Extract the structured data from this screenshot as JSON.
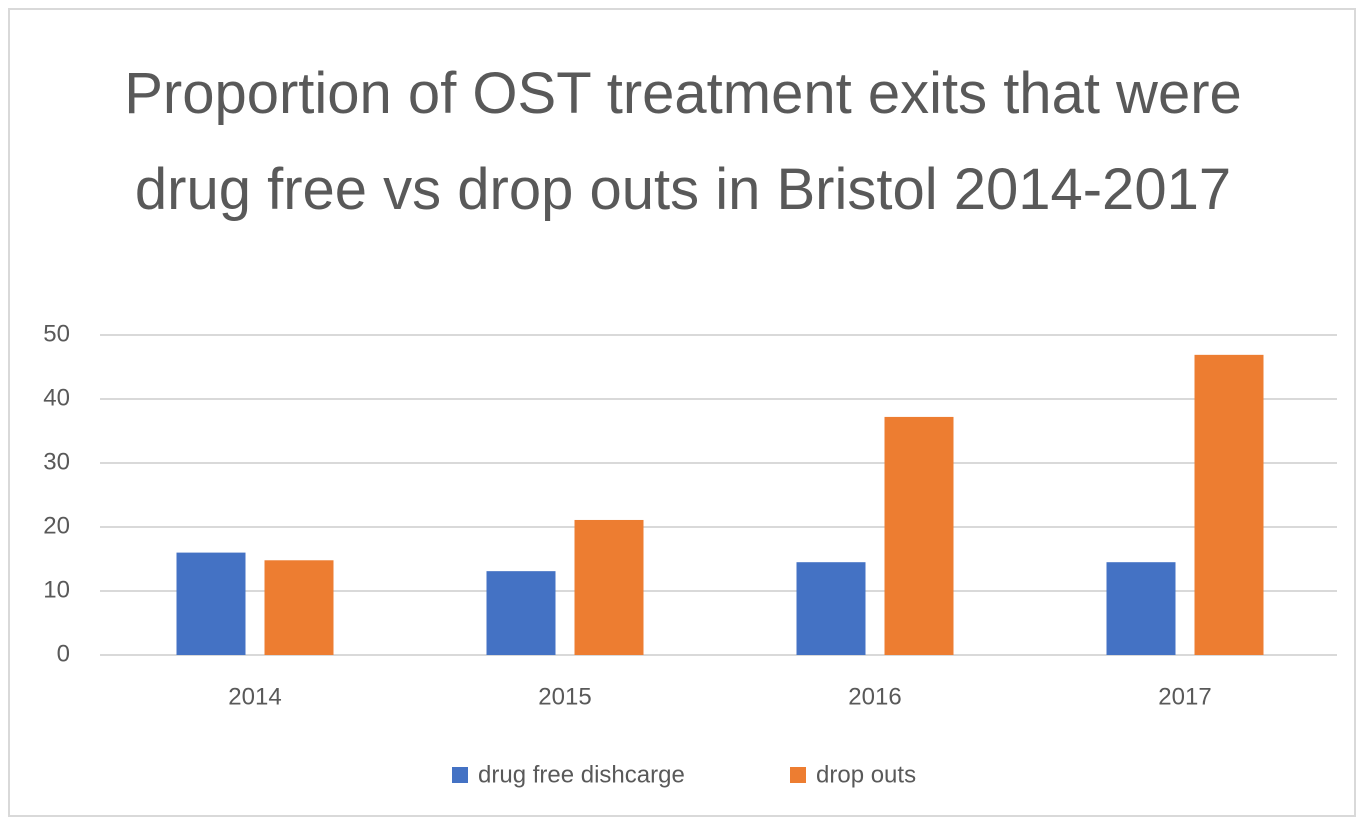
{
  "chart_data": {
    "type": "bar",
    "title": "Proportion of OST treatment exits that were drug free vs drop outs in Bristol 2014-2017",
    "categories": [
      "2014",
      "2015",
      "2016",
      "2017"
    ],
    "series": [
      {
        "name": "drug free dishcarge",
        "color": "#4472c4",
        "values": [
          16,
          13.1,
          14.5,
          14.5
        ]
      },
      {
        "name": "drop outs",
        "color": "#ed7d31",
        "values": [
          14.8,
          21.1,
          37.2,
          46.9
        ]
      }
    ],
    "ylim": [
      0,
      50
    ],
    "yticks": [
      0,
      10,
      20,
      30,
      40,
      50
    ],
    "grid": true,
    "legend": "bottom"
  }
}
